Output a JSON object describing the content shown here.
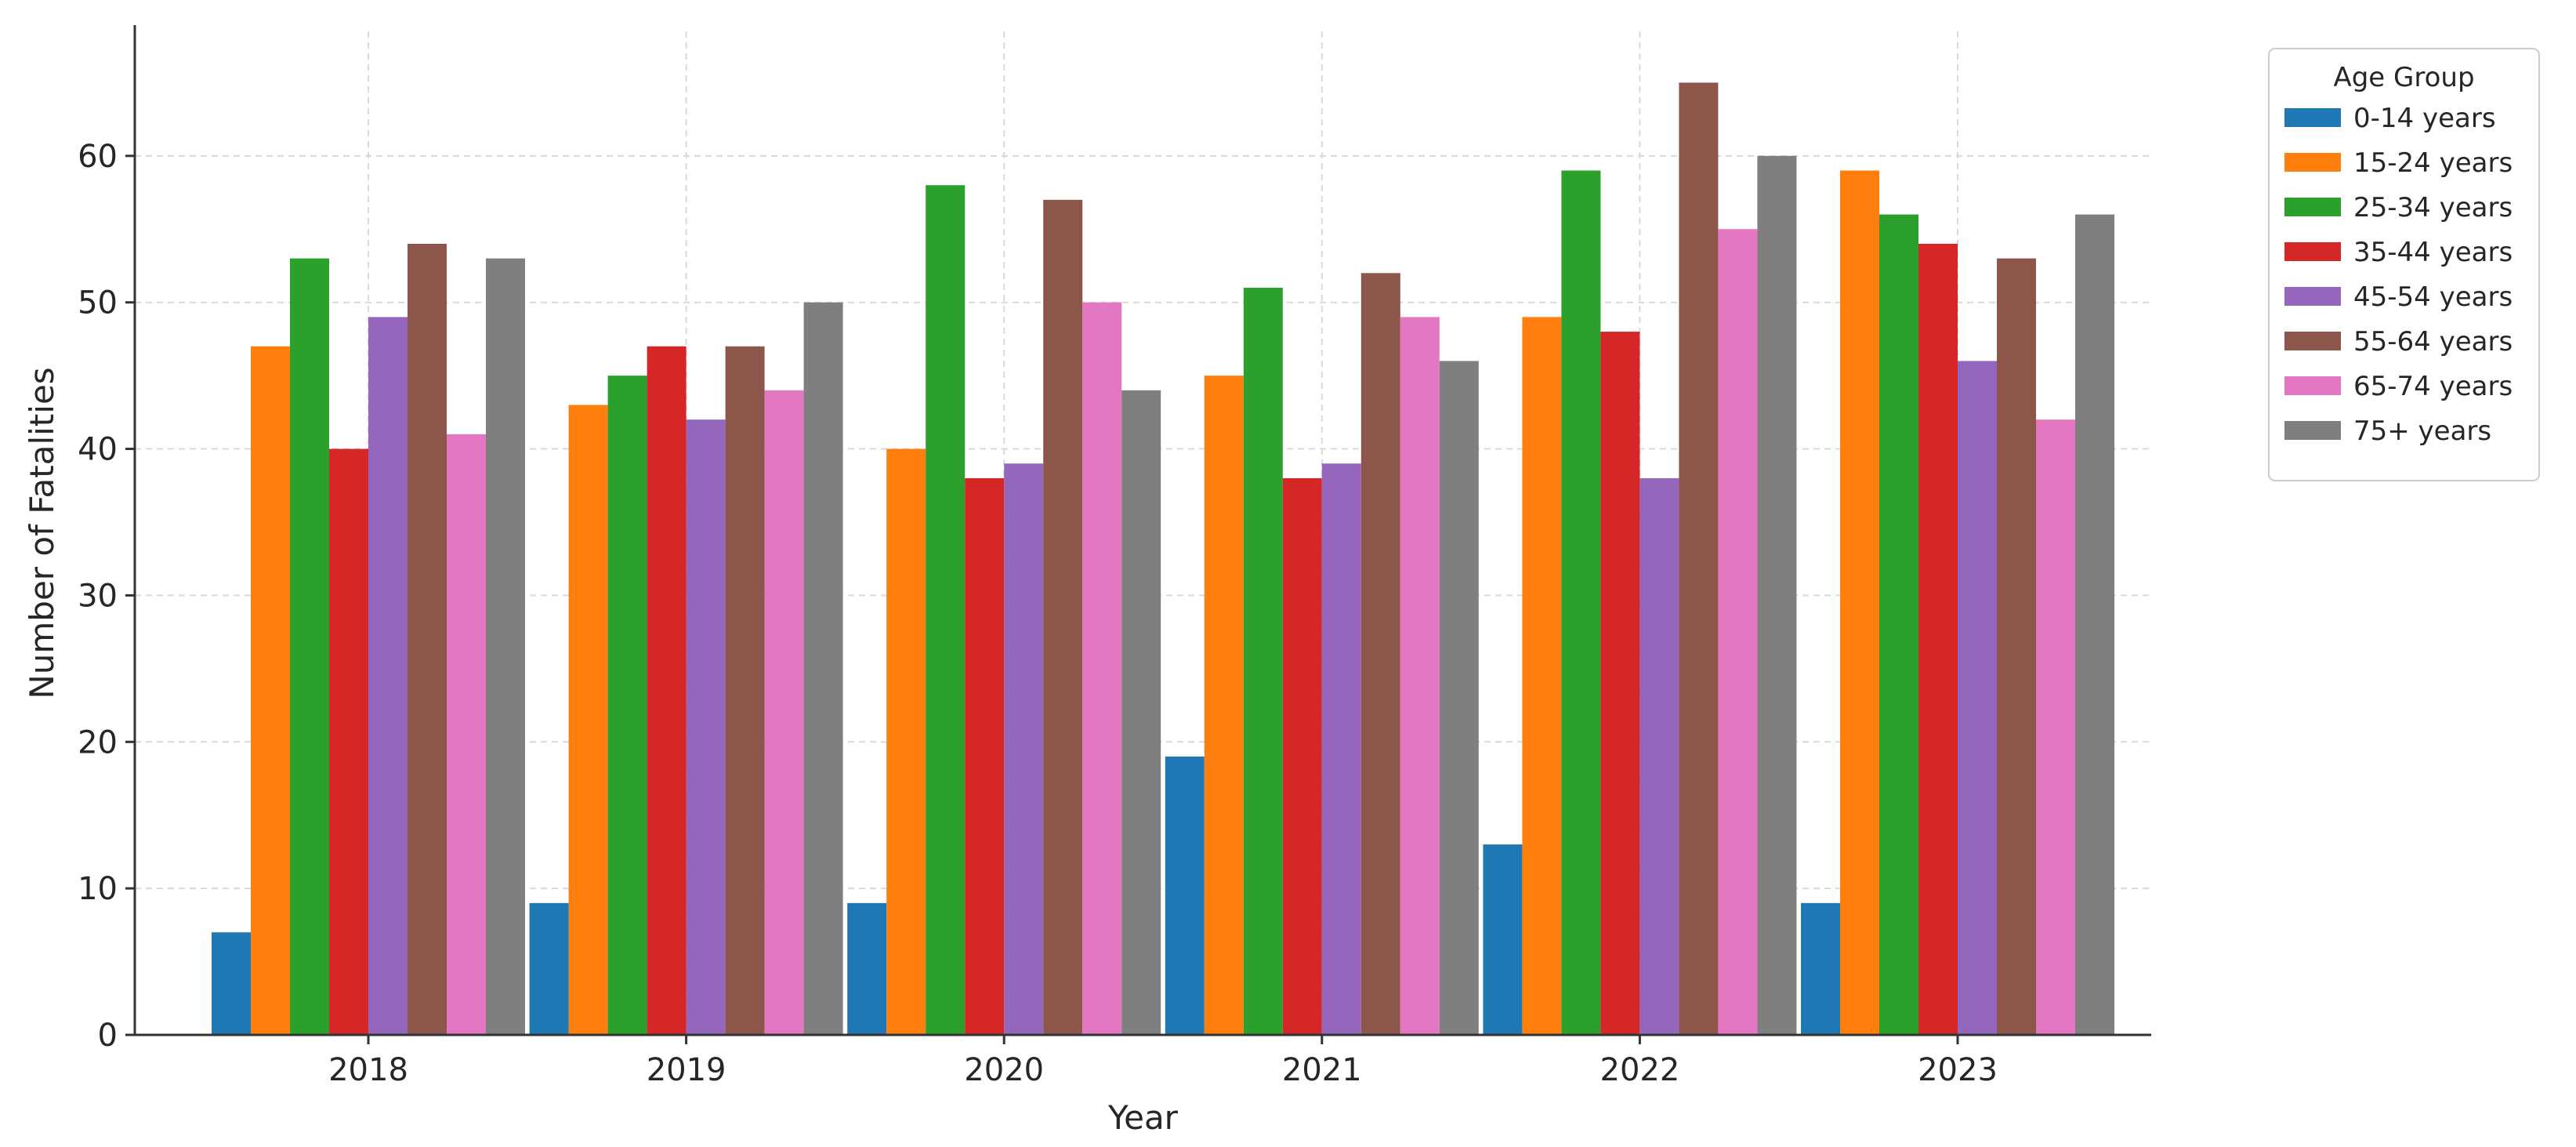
{
  "chart_data": {
    "type": "bar",
    "title": "",
    "xlabel": "Year",
    "ylabel": "Number of Fatalities",
    "categories": [
      "2018",
      "2019",
      "2020",
      "2021",
      "2022",
      "2023"
    ],
    "ylim": [
      0,
      68.5
    ],
    "yticks": [
      0,
      10,
      20,
      30,
      40,
      50,
      60
    ],
    "grid": true,
    "legend": {
      "title": "Age Group",
      "placement": "outside-top-right"
    },
    "series": [
      {
        "name": "0-14 years",
        "color": "#1f77b4",
        "values": [
          7,
          9,
          9,
          19,
          13,
          9
        ]
      },
      {
        "name": "15-24 years",
        "color": "#ff7f0e",
        "values": [
          47,
          43,
          40,
          45,
          49,
          59
        ]
      },
      {
        "name": "25-34 years",
        "color": "#2ca02c",
        "values": [
          53,
          45,
          58,
          51,
          59,
          56
        ]
      },
      {
        "name": "35-44 years",
        "color": "#d62728",
        "values": [
          40,
          47,
          38,
          38,
          48,
          54
        ]
      },
      {
        "name": "45-54 years",
        "color": "#9467bd",
        "values": [
          49,
          42,
          39,
          39,
          38,
          46
        ]
      },
      {
        "name": "55-64 years",
        "color": "#8c564b",
        "values": [
          54,
          47,
          57,
          52,
          65,
          53
        ]
      },
      {
        "name": "65-74 years",
        "color": "#e377c2",
        "values": [
          41,
          44,
          50,
          49,
          55,
          42
        ]
      },
      {
        "name": "75+ years",
        "color": "#7f7f7f",
        "values": [
          53,
          50,
          44,
          46,
          60,
          56
        ]
      }
    ]
  }
}
